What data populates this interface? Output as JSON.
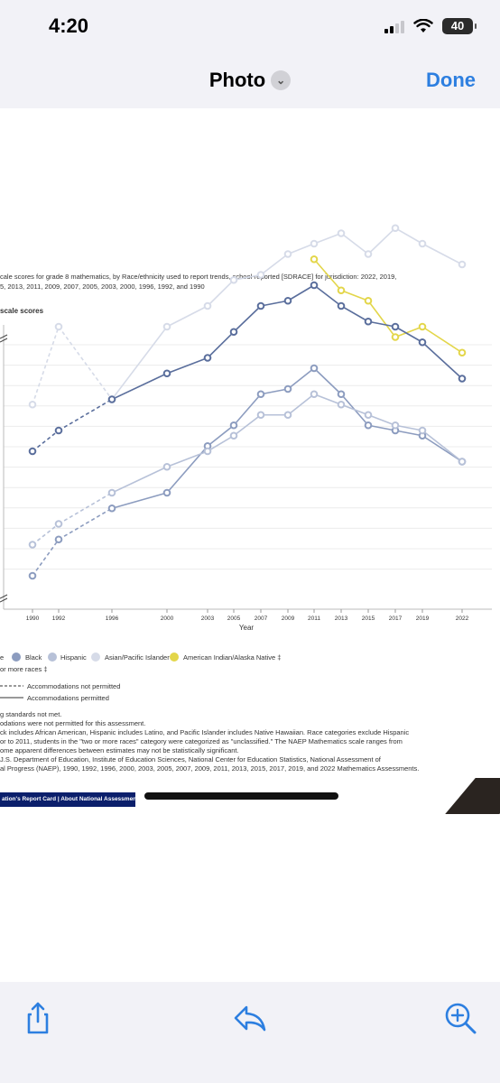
{
  "status": {
    "time": "4:20",
    "battery": "40"
  },
  "nav": {
    "title": "Photo",
    "done_label": "Done"
  },
  "caption": {
    "line1": "cale scores for grade 8 mathematics, by Race/ethnicity used to report trends, school-reported [SDRACE] for jurisdiction: 2022, 2019,",
    "line2": "5, 2013, 2011, 2009, 2007, 2005, 2003, 2000, 1996, 1992, and 1990",
    "subtitle": "scale scores"
  },
  "chart_data": {
    "type": "line",
    "x": [
      1990,
      1992,
      1996,
      2000,
      2003,
      2005,
      2007,
      2009,
      2011,
      2013,
      2015,
      2017,
      2019,
      2022
    ],
    "xlabel": "Year",
    "accommodations_permitted_from": 1996,
    "series": [
      {
        "name": "Black",
        "color": "#8c9cbf",
        "values": [
          237,
          244,
          250,
          253,
          262,
          266,
          272,
          273,
          277,
          272,
          266,
          265,
          264,
          259
        ]
      },
      {
        "name": "Hispanic",
        "color": "#b7c1d8",
        "values": [
          243,
          247,
          253,
          258,
          261,
          264,
          268,
          268,
          272,
          270,
          268,
          266,
          265,
          259
        ]
      },
      {
        "name": "Asian/Pacific Islander",
        "color": "#d6dbe8",
        "values": [
          270,
          285,
          271,
          285,
          289,
          294,
          295,
          299,
          301,
          303,
          299,
          304,
          301,
          297
        ]
      },
      {
        "name": "American Indian/Alaska Native",
        "color": "#e3d64a",
        "values": [
          null,
          null,
          null,
          null,
          null,
          null,
          null,
          null,
          298,
          292,
          290,
          283,
          285,
          280
        ]
      },
      {
        "name": "Two or more races",
        "color": "#5a6e9c",
        "values": [
          261,
          265,
          271,
          276,
          279,
          284,
          289,
          290,
          293,
          289,
          286,
          285,
          282,
          275
        ]
      }
    ]
  },
  "legend": {
    "white_fragment": "e",
    "black": "Black",
    "hispanic": "Hispanic",
    "asian": "Asian/Pacific Islander",
    "native": "American Indian/Alaska Native ‡",
    "two_more": "or more races ‡",
    "not_permitted": "Accommodations not permitted",
    "permitted": "Accommodations permitted"
  },
  "notes": {
    "n1": "g standards not met.",
    "n2": "odations were not permitted for this assessment.",
    "n3": "ck includes African American, Hispanic includes Latino, and Pacific Islander includes Native Hawaiian. Race categories exclude Hispanic",
    "n4": "or to 2011, students in the \"two or more races\" category were categorized as \"unclassified.\" The NAEP Mathematics scale ranges from",
    "n5": "ome apparent differences between estimates may not be statistically significant.",
    "n6": "J.S. Department of Education, Institute of Education Sciences, National Center for Education Statistics, National Assessment of",
    "n7": "al Progress (NAEP), 1990, 1992, 1996, 2000, 2003, 2005, 2007, 2009, 2011, 2013, 2015, 2017, 2019, and 2022 Mathematics Assessments."
  },
  "footer": {
    "links": "ation's Report Card | About National Assessment of"
  }
}
